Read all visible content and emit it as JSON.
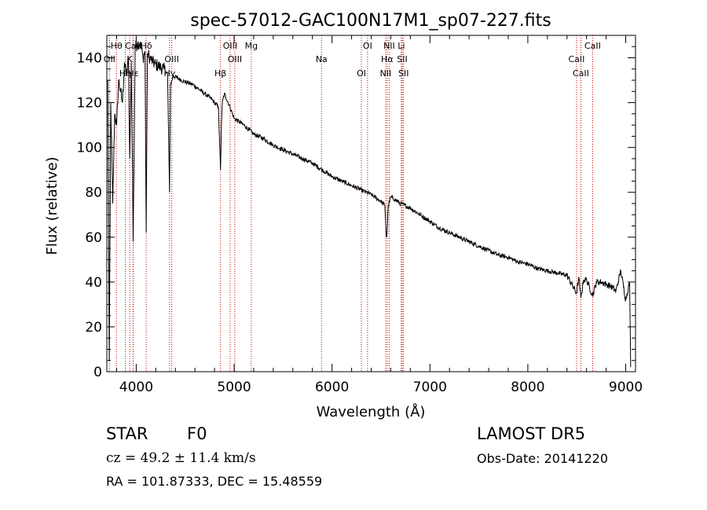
{
  "chart_data": {
    "type": "line",
    "title": "spec-57012-GAC100N17M1_sp07-227.fits",
    "xlabel": "Wavelength (Å)",
    "ylabel": "Flux (relative)",
    "xlim": [
      3700,
      9100
    ],
    "ylim": [
      0,
      150
    ],
    "xticks": [
      4000,
      5000,
      6000,
      7000,
      8000,
      9000
    ],
    "yticks": [
      0,
      20,
      40,
      60,
      80,
      100,
      120,
      140
    ],
    "grid": false,
    "line_color": "#000000",
    "marker_color": "#cc0000",
    "spectrum_anchor_points": {
      "x": [
        3710,
        3725,
        3740,
        3760,
        3780,
        3800,
        3820,
        3840,
        3860,
        3880,
        3900,
        3920,
        3934,
        3950,
        3969,
        3990,
        4010,
        4040,
        4070,
        4090,
        4102,
        4115,
        4140,
        4170,
        4200,
        4240,
        4280,
        4320,
        4340,
        4350,
        4380,
        4420,
        4460,
        4520,
        4580,
        4640,
        4700,
        4760,
        4800,
        4840,
        4861,
        4870,
        4880,
        4900,
        4950,
        5000,
        5100,
        5200,
        5300,
        5400,
        5500,
        5600,
        5700,
        5800,
        5900,
        6000,
        6100,
        6200,
        6300,
        6400,
        6500,
        6540,
        6555,
        6563,
        6575,
        6600,
        6700,
        6800,
        6900,
        7000,
        7100,
        7200,
        7300,
        7400,
        7500,
        7600,
        7700,
        7800,
        7900,
        8000,
        8100,
        8200,
        8300,
        8400,
        8498,
        8520,
        8542,
        8570,
        8600,
        8662,
        8700,
        8750,
        8800,
        8850,
        8900,
        8950,
        9000,
        9040,
        9050
      ],
      "y": [
        130,
        5,
        120,
        75,
        115,
        110,
        130,
        125,
        120,
        138,
        132,
        140,
        95,
        138,
        58,
        145,
        146,
        147,
        140,
        143,
        62,
        142,
        140,
        138,
        137,
        136,
        135,
        133,
        80,
        128,
        132,
        131,
        130,
        129,
        128,
        126,
        124,
        122,
        120,
        118,
        90,
        110,
        120,
        124,
        119,
        113,
        110,
        106,
        104,
        101,
        99,
        97,
        95,
        93,
        90,
        87,
        85,
        83,
        81,
        79,
        76,
        74,
        60,
        62,
        74,
        78,
        75,
        73,
        70,
        67,
        64,
        62,
        60,
        58,
        56,
        54,
        52,
        51,
        49,
        48,
        46,
        45,
        44,
        43,
        35,
        42,
        33,
        41,
        41,
        34,
        40,
        40,
        39,
        38,
        36,
        45,
        32,
        40,
        2
      ]
    },
    "line_markers": [
      {
        "label": "Hθ",
        "x": 3798
      },
      {
        "label": "K",
        "x": 3934
      },
      {
        "label": "Hε",
        "x": 3970
      },
      {
        "label": "Hδ",
        "x": 4102
      },
      {
        "label": "OII",
        "x": 3727
      },
      {
        "label": "Hη",
        "x": 3889
      },
      {
        "label": "CaII",
        "x": 3968
      },
      {
        "label": "OIII",
        "x": 4363
      },
      {
        "label": "Hγ",
        "x": 4341
      },
      {
        "label": "OIII",
        "x": 4959
      },
      {
        "label": "OIII",
        "x": 5007
      },
      {
        "label": "Hβ",
        "x": 4861
      },
      {
        "label": "Mg",
        "x": 5175
      },
      {
        "label": "Na",
        "x": 5893
      },
      {
        "label": "OI",
        "x": 6300
      },
      {
        "label": "OI",
        "x": 6363
      },
      {
        "label": "Hα",
        "x": 6563
      },
      {
        "label": "NII",
        "x": 6548
      },
      {
        "label": "NII",
        "x": 6584
      },
      {
        "label": "SII",
        "x": 6717
      },
      {
        "label": "SII",
        "x": 6731
      },
      {
        "label": "Li",
        "x": 6708
      },
      {
        "label": "CaII",
        "x": 8498
      },
      {
        "label": "CaII",
        "x": 8542
      },
      {
        "label": "CaII",
        "x": 8662
      }
    ]
  },
  "info": {
    "class_label": "STAR",
    "subclass": "F0",
    "survey": "LAMOST DR5",
    "cz": "cz = 49.2 ± 11.4 km/s",
    "obs_date": "Obs-Date: 20141220",
    "coords": "RA = 101.87333, DEC =  15.48559"
  }
}
